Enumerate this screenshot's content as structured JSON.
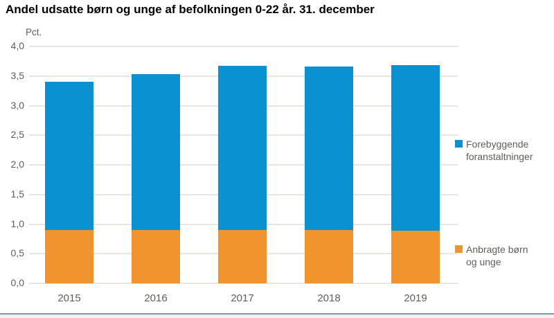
{
  "title": "Andel udsatte børn og unge af befolkningen 0-22 år. 31. december",
  "chart_data": {
    "type": "bar",
    "stacked": true,
    "title": "Andel udsatte børn og unge af befolkningen 0-22 år. 31. december",
    "unit_label": "Pct.",
    "xlabel": "",
    "ylabel": "Pct.",
    "categories": [
      "2015",
      "2016",
      "2017",
      "2018",
      "2019"
    ],
    "series": [
      {
        "name": "Anbragte børn og unge",
        "color": "#f2942d",
        "values": [
          0.9,
          0.9,
          0.9,
          0.9,
          0.89
        ]
      },
      {
        "name": "Forebyggende foranstaltninger",
        "color": "#0a91d2",
        "values": [
          2.5,
          2.63,
          2.77,
          2.76,
          2.8
        ]
      }
    ],
    "totals": [
      3.4,
      3.53,
      3.67,
      3.66,
      3.69
    ],
    "ylim": [
      0,
      4
    ],
    "ytick_step": 0.5,
    "ytick_labels": [
      "0,0",
      "0,5",
      "1,0",
      "1,5",
      "2,0",
      "2,5",
      "3,0",
      "3,5",
      "4,0"
    ],
    "grid": true,
    "legend_position": "right"
  },
  "legend": {
    "items": [
      {
        "label": "Forebyggende\nforanstaltninger",
        "color": "#0a91d2"
      },
      {
        "label": "Anbragte børn\nog unge",
        "color": "#f2942d"
      }
    ]
  },
  "colors": {
    "bar_blue": "#0a91d2",
    "bar_orange": "#f2942d",
    "gridline": "#e7e5e0",
    "axis_text": "#5e5d56",
    "bottom_divider": "#8496a4"
  }
}
